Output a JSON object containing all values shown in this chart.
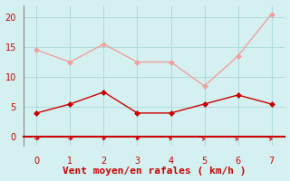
{
  "x": [
    0,
    1,
    2,
    3,
    4,
    5,
    6,
    7
  ],
  "wind_avg": [
    4,
    5.5,
    7.5,
    4,
    4,
    5.5,
    7,
    5.5
  ],
  "wind_gust": [
    14.5,
    12.5,
    15.5,
    12.5,
    12.5,
    8.5,
    13.5,
    20.5
  ],
  "line_color_avg": "#cc0000",
  "line_color_gust": "#f0a0a0",
  "marker_color_avg": "#cc0000",
  "marker_color_gust": "#f0a0a0",
  "background_color": "#d4f0f0",
  "grid_color": "#a8d8d8",
  "spine_color": "#888888",
  "axis_bottom_color": "#cc0000",
  "xlabel": "Vent moyen/en rafales ( km/h )",
  "xlabel_color": "#cc0000",
  "tick_label_color": "#cc0000",
  "arrow_color": "#cc0000",
  "ylim": [
    -1.5,
    22
  ],
  "xlim": [
    -0.4,
    7.4
  ],
  "yticks": [
    0,
    5,
    10,
    15,
    20
  ],
  "xticks": [
    0,
    1,
    2,
    3,
    4,
    5,
    6,
    7
  ],
  "font_size": 7,
  "marker_size": 3,
  "linewidth": 1.0
}
